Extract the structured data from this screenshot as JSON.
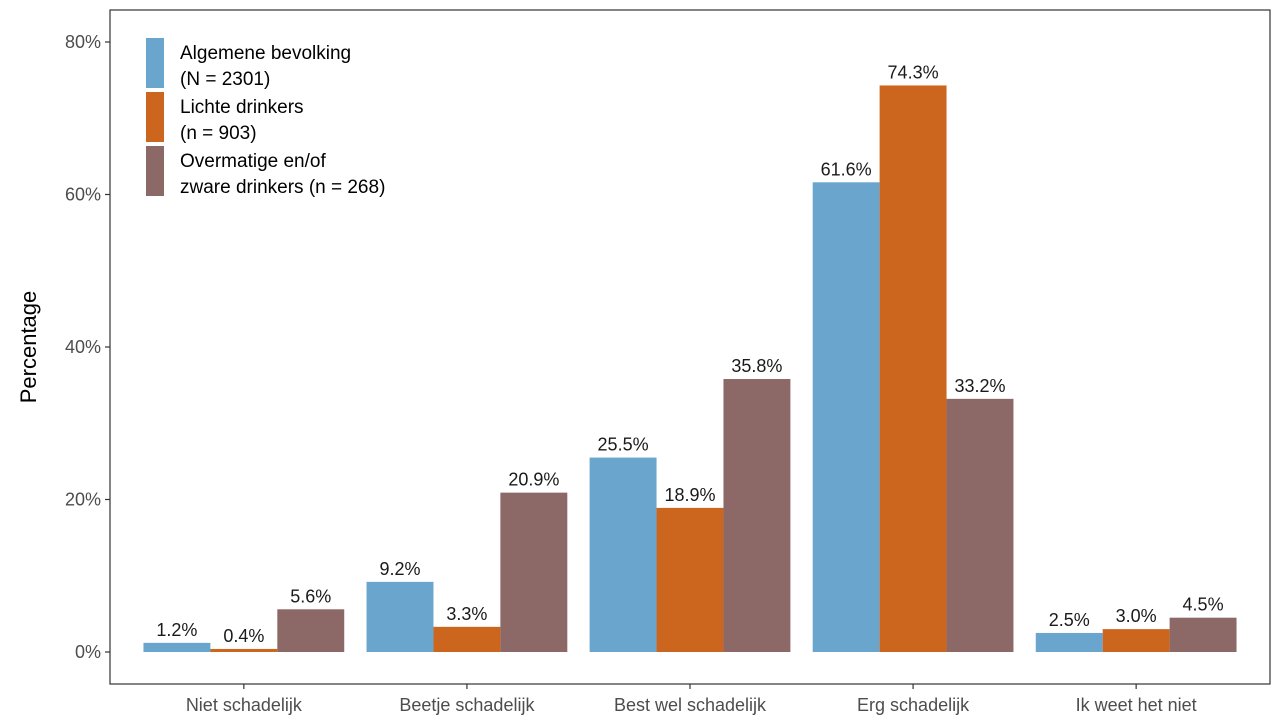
{
  "chart_data": {
    "type": "bar",
    "title": "",
    "xlabel": "",
    "ylabel": "Percentage",
    "ylim": [
      0,
      80
    ],
    "y_ticks": [
      "0%",
      "20%",
      "40%",
      "60%",
      "80%"
    ],
    "grid": false,
    "legend_position": "top-left",
    "categories": [
      "Niet schadelijk",
      "Beetje schadelijk",
      "Best wel schadelijk",
      "Erg schadelijk",
      "Ik weet het niet"
    ],
    "series": [
      {
        "name": "Algemene bevolking (N = 2301)",
        "legend_lines": [
          "Algemene bevolking",
          "(N = 2301)"
        ],
        "color": "#6aa5cd",
        "values": [
          1.2,
          9.2,
          25.5,
          61.6,
          2.5
        ],
        "labels": [
          "1.2%",
          "9.2%",
          "25.5%",
          "61.6%",
          "2.5%"
        ]
      },
      {
        "name": "Lichte drinkers (n = 903)",
        "legend_lines": [
          "Lichte drinkers",
          "(n = 903)"
        ],
        "color": "#cc651e",
        "values": [
          0.4,
          3.3,
          18.9,
          74.3,
          3.0
        ],
        "labels": [
          "0.4%",
          "3.3%",
          "18.9%",
          "74.3%",
          "3.0%"
        ]
      },
      {
        "name": "Overmatige en/of zware drinkers (n = 268)",
        "legend_lines": [
          "Overmatige en/of",
          "zware drinkers (n = 268)"
        ],
        "color": "#8c6866",
        "values": [
          5.6,
          20.9,
          35.8,
          33.2,
          4.5
        ],
        "labels": [
          "5.6%",
          "20.9%",
          "35.8%",
          "33.2%",
          "4.5%"
        ]
      }
    ]
  }
}
